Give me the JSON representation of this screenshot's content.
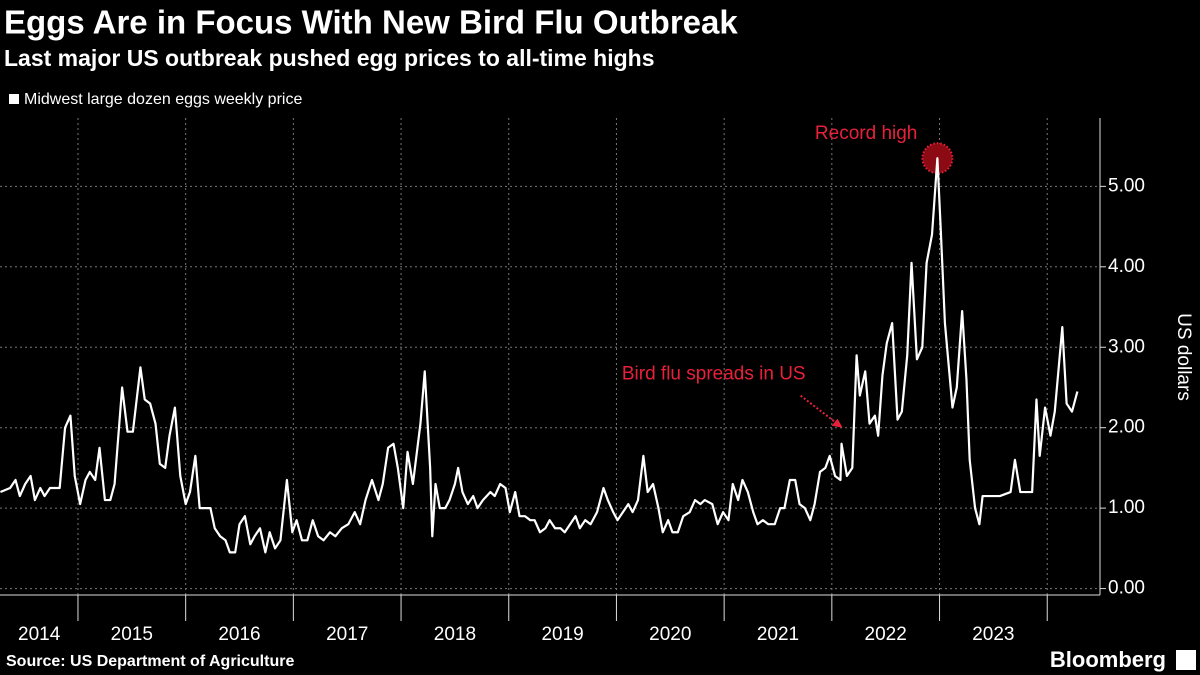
{
  "chart_data": {
    "type": "line",
    "title": "Eggs Are in Focus With New Bird Flu Outbreak",
    "subtitle": "Last major US outbreak pushed egg prices to all-time highs",
    "y_label": "US dollars",
    "source": "Source: US Department of Agriculture",
    "branding": "Bloomberg",
    "x": [
      2014.28,
      2014.37,
      2014.42,
      2014.46,
      2014.51,
      2014.56,
      2014.6,
      2014.65,
      2014.69,
      2014.74,
      2014.83,
      2014.88,
      2014.93,
      2014.97,
      2015.02,
      2015.07,
      2015.11,
      2015.16,
      2015.2,
      2015.25,
      2015.3,
      2015.34,
      2015.41,
      2015.46,
      2015.51,
      2015.58,
      2015.62,
      2015.67,
      2015.72,
      2015.76,
      2015.81,
      2015.85,
      2015.9,
      2015.95,
      2016.0,
      2016.04,
      2016.09,
      2016.13,
      2016.18,
      2016.23,
      2016.27,
      2016.32,
      2016.37,
      2016.41,
      2016.46,
      2016.5,
      2016.55,
      2016.6,
      2016.64,
      2016.69,
      2016.74,
      2016.78,
      2016.83,
      2016.88,
      2016.94,
      2016.99,
      2017.03,
      2017.08,
      2017.13,
      2017.18,
      2017.23,
      2017.28,
      2017.34,
      2017.39,
      2017.45,
      2017.51,
      2017.57,
      2017.62,
      2017.67,
      2017.73,
      2017.79,
      2017.83,
      2017.88,
      2017.93,
      2017.97,
      2018.02,
      2018.06,
      2018.11,
      2018.18,
      2018.22,
      2018.27,
      2018.29,
      2018.32,
      2018.36,
      2018.41,
      2018.45,
      2018.5,
      2018.53,
      2018.57,
      2018.62,
      2018.67,
      2018.71,
      2018.76,
      2018.83,
      2018.87,
      2018.92,
      2018.97,
      2019.01,
      2019.06,
      2019.1,
      2019.15,
      2019.2,
      2019.24,
      2019.29,
      2019.34,
      2019.38,
      2019.43,
      2019.48,
      2019.52,
      2019.57,
      2019.62,
      2019.66,
      2019.71,
      2019.76,
      2019.82,
      2019.88,
      2019.92,
      2019.97,
      2020.01,
      2020.06,
      2020.11,
      2020.15,
      2020.2,
      2020.25,
      2020.29,
      2020.34,
      2020.39,
      2020.43,
      2020.48,
      2020.52,
      2020.57,
      2020.62,
      2020.68,
      2020.73,
      2020.78,
      2020.82,
      2020.89,
      2020.94,
      2020.99,
      2021.04,
      2021.08,
      2021.13,
      2021.17,
      2021.22,
      2021.27,
      2021.31,
      2021.36,
      2021.41,
      2021.47,
      2021.52,
      2021.56,
      2021.61,
      2021.66,
      2021.7,
      2021.75,
      2021.8,
      2021.84,
      2021.89,
      2021.94,
      2021.98,
      2022.03,
      2022.08,
      2022.09,
      2022.14,
      2022.19,
      2022.23,
      2022.26,
      2022.31,
      2022.35,
      2022.4,
      2022.43,
      2022.47,
      2022.51,
      2022.56,
      2022.61,
      2022.65,
      2022.7,
      2022.74,
      2022.79,
      2022.84,
      2022.88,
      2022.93,
      2022.98,
      2023.01,
      2023.05,
      2023.12,
      2023.16,
      2023.21,
      2023.25,
      2023.28,
      2023.33,
      2023.37,
      2023.4,
      2023.47,
      2023.56,
      2023.66,
      2023.7,
      2023.75,
      2023.79,
      2023.86,
      2023.9,
      2023.93,
      2023.98,
      2024.03,
      2024.07,
      2024.14,
      2024.18,
      2024.23,
      2024.28
    ],
    "series": [
      {
        "name": "Midwest large dozen eggs weekly price",
        "color": "#ffffff",
        "values": [
          1.2,
          1.25,
          1.35,
          1.15,
          1.3,
          1.4,
          1.1,
          1.25,
          1.15,
          1.25,
          1.25,
          2.0,
          2.15,
          1.4,
          1.05,
          1.35,
          1.45,
          1.35,
          1.75,
          1.1,
          1.1,
          1.3,
          2.5,
          1.95,
          1.95,
          2.75,
          2.35,
          2.3,
          2.05,
          1.55,
          1.5,
          1.9,
          2.25,
          1.4,
          1.05,
          1.2,
          1.65,
          1.0,
          1.0,
          1.0,
          0.75,
          0.65,
          0.6,
          0.45,
          0.45,
          0.8,
          0.9,
          0.55,
          0.65,
          0.75,
          0.45,
          0.7,
          0.5,
          0.6,
          1.35,
          0.7,
          0.85,
          0.6,
          0.6,
          0.85,
          0.65,
          0.6,
          0.7,
          0.65,
          0.75,
          0.8,
          0.95,
          0.8,
          1.1,
          1.35,
          1.1,
          1.3,
          1.75,
          1.8,
          1.5,
          1.0,
          1.7,
          1.3,
          2.05,
          2.7,
          1.5,
          0.65,
          1.3,
          1.0,
          1.0,
          1.1,
          1.3,
          1.5,
          1.2,
          1.05,
          1.15,
          1.0,
          1.1,
          1.2,
          1.15,
          1.3,
          1.25,
          0.95,
          1.2,
          0.9,
          0.9,
          0.85,
          0.85,
          0.7,
          0.75,
          0.85,
          0.75,
          0.75,
          0.7,
          0.8,
          0.9,
          0.75,
          0.85,
          0.8,
          0.95,
          1.25,
          1.1,
          0.95,
          0.85,
          0.95,
          1.05,
          0.95,
          1.1,
          1.65,
          1.2,
          1.3,
          1.0,
          0.7,
          0.85,
          0.7,
          0.7,
          0.9,
          0.95,
          1.1,
          1.05,
          1.1,
          1.05,
          0.8,
          0.95,
          0.85,
          1.3,
          1.1,
          1.35,
          1.2,
          0.95,
          0.8,
          0.85,
          0.8,
          0.8,
          1.0,
          1.0,
          1.35,
          1.35,
          1.05,
          1.0,
          0.85,
          1.05,
          1.45,
          1.5,
          1.65,
          1.4,
          1.35,
          1.8,
          1.4,
          1.5,
          2.9,
          2.4,
          2.7,
          2.05,
          2.15,
          1.9,
          2.65,
          3.05,
          3.3,
          2.1,
          2.2,
          2.9,
          4.05,
          2.85,
          3.0,
          4.05,
          4.4,
          5.35,
          4.5,
          3.3,
          2.25,
          2.5,
          3.45,
          2.6,
          1.6,
          1.0,
          0.8,
          1.15,
          1.15,
          1.15,
          1.2,
          1.6,
          1.2,
          1.2,
          1.2,
          2.35,
          1.65,
          2.25,
          1.9,
          2.2,
          3.25,
          2.3,
          2.2,
          2.45
        ]
      }
    ],
    "xlim": [
      2014.276,
      2024.49
    ],
    "xticks": [
      {
        "value": 2014.64,
        "label": "2014"
      },
      {
        "value": 2015.5,
        "label": "2015"
      },
      {
        "value": 2016.5,
        "label": "2016"
      },
      {
        "value": 2017.5,
        "label": "2017"
      },
      {
        "value": 2018.5,
        "label": "2018"
      },
      {
        "value": 2019.5,
        "label": "2019"
      },
      {
        "value": 2020.5,
        "label": "2020"
      },
      {
        "value": 2021.5,
        "label": "2021"
      },
      {
        "value": 2022.5,
        "label": "2022"
      },
      {
        "value": 2023.5,
        "label": "2023"
      }
    ],
    "xgrid": [
      2015,
      2016,
      2017,
      2018,
      2019,
      2020,
      2021,
      2022,
      2023,
      2024
    ],
    "ylim": [
      -0.08,
      5.85
    ],
    "yticks": [
      {
        "value": 0,
        "label": "0.00"
      },
      {
        "value": 1,
        "label": "1.00"
      },
      {
        "value": 2,
        "label": "2.00"
      },
      {
        "value": 3,
        "label": "3.00"
      },
      {
        "value": 4,
        "label": "4.00"
      },
      {
        "value": 5,
        "label": "5.00"
      }
    ],
    "grid": true,
    "annotations": [
      {
        "text": "Record high",
        "x": 2022.98,
        "y": 5.35,
        "style": "circle",
        "color": "#e8213a"
      },
      {
        "text": "Bird flu spreads in US",
        "x": 2022.1,
        "y": 2.0,
        "style": "arrow",
        "color": "#e8213a"
      }
    ]
  }
}
